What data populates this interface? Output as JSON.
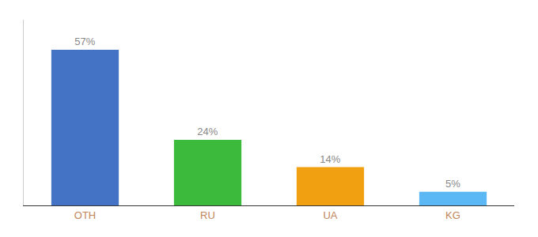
{
  "chart_data": {
    "type": "bar",
    "categories": [
      "OTH",
      "RU",
      "UA",
      "KG"
    ],
    "values": [
      57,
      24,
      14,
      5
    ],
    "value_labels": [
      "57%",
      "24%",
      "14%",
      "5%"
    ],
    "data_labels": true,
    "colors": [
      "#4472c4",
      "#3cba3c",
      "#f0a010",
      "#5bb8f5"
    ],
    "ylim": [
      0,
      68
    ],
    "grid": false,
    "tick_labels": "x"
  }
}
